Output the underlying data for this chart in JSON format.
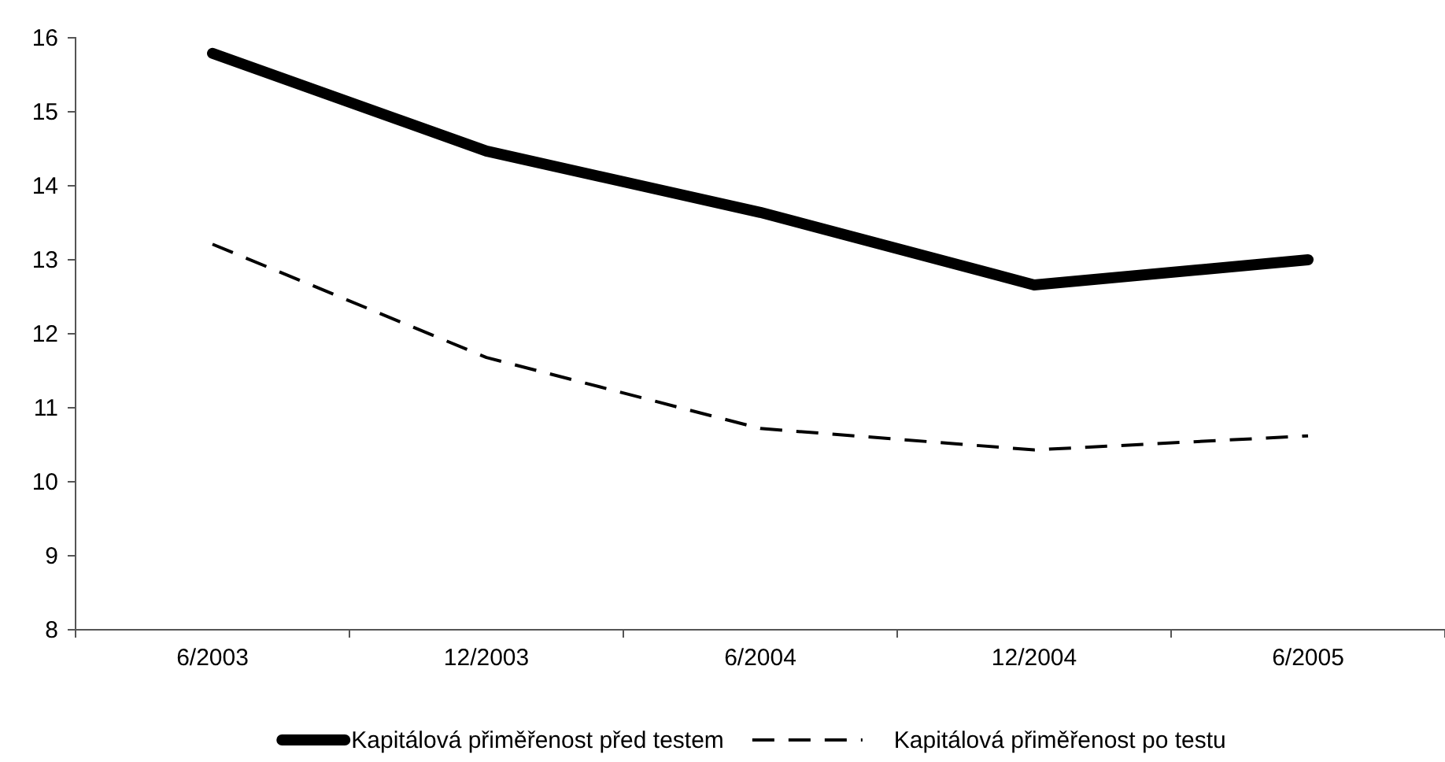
{
  "chart_data": {
    "type": "line",
    "categories": [
      "6/2003",
      "12/2003",
      "6/2004",
      "12/2004",
      "6/2005"
    ],
    "series": [
      {
        "name": "Kapitálová přiměřenost před testem",
        "color": "#000000",
        "values": [
          15.79,
          14.47,
          13.64,
          12.66,
          13.0
        ],
        "line_style": "solid"
      },
      {
        "name": "Kapitálová přiměřenost po testu",
        "color": "#000000",
        "values": [
          13.21,
          11.68,
          10.72,
          10.43,
          10.62
        ],
        "line_style": "dashed"
      }
    ],
    "ylim": [
      8,
      16
    ],
    "yticks": [
      8,
      9,
      10,
      11,
      12,
      13,
      14,
      15,
      16
    ],
    "grid": false,
    "legend": "bottom",
    "marker": "none"
  }
}
